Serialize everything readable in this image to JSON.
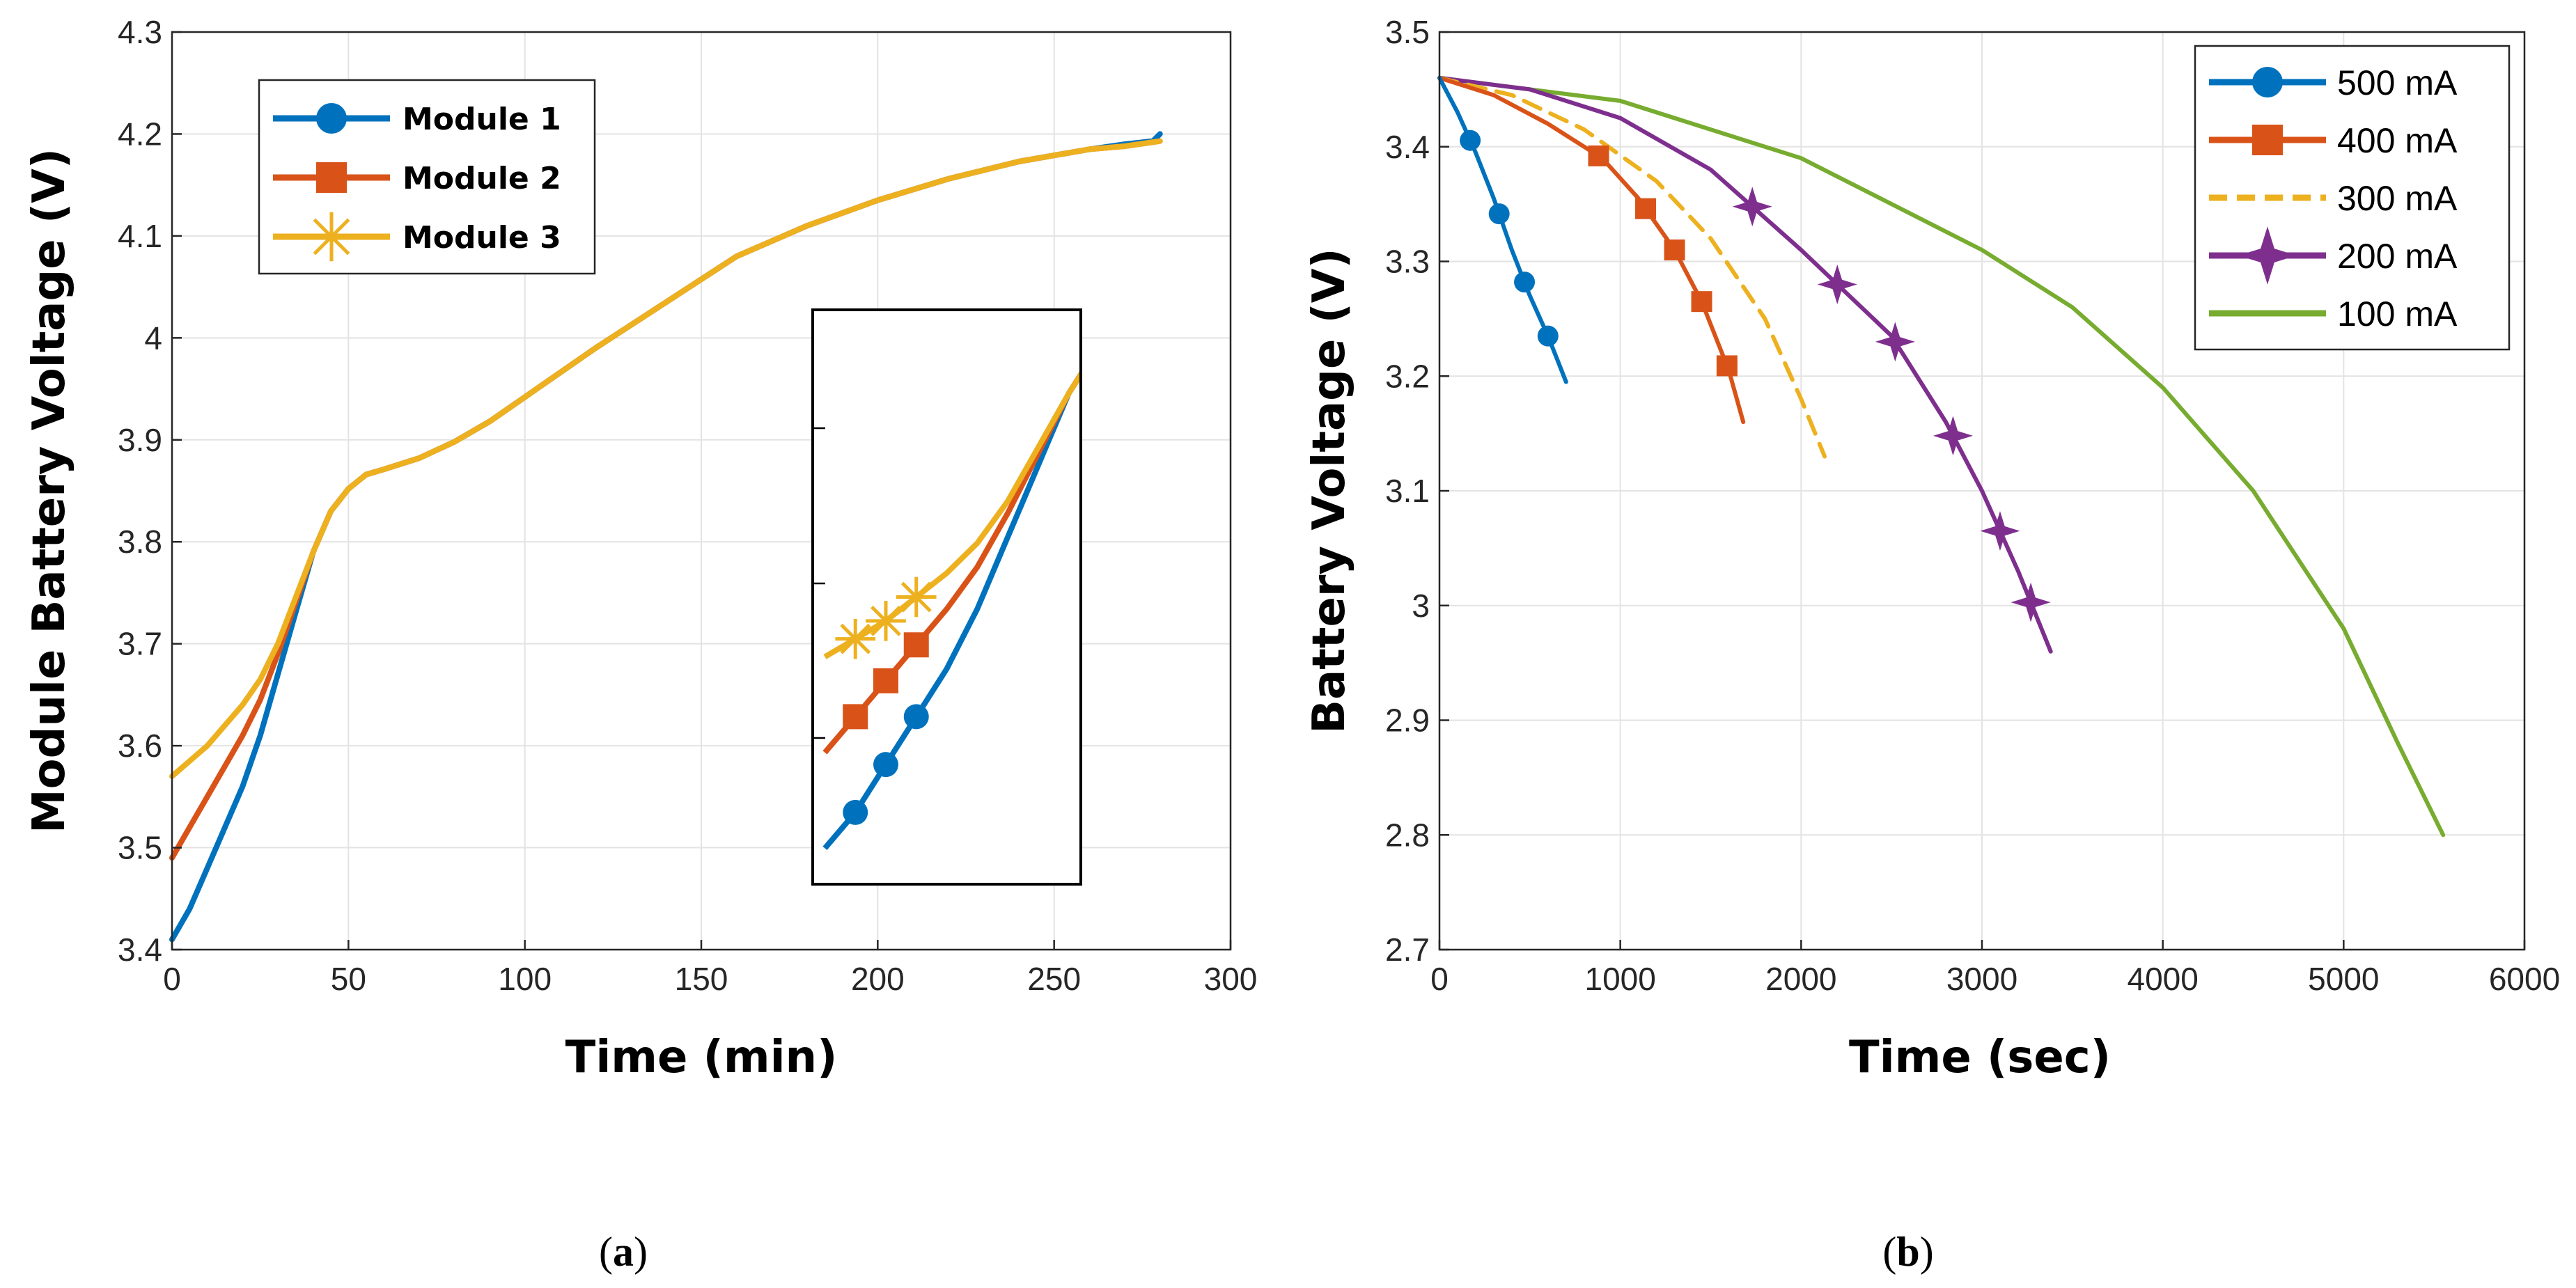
{
  "chart_data": [
    {
      "type": "line",
      "title": "",
      "xlabel": "Time (min)",
      "ylabel": "Module Battery Voltage (V)",
      "xlim": [
        0,
        300
      ],
      "ylim": [
        3.4,
        4.3
      ],
      "xticks": [
        "0",
        "50",
        "100",
        "150",
        "200",
        "250",
        "300"
      ],
      "yticks": [
        "3.4",
        "3.5",
        "3.6",
        "3.7",
        "3.8",
        "3.9",
        "4",
        "4.1",
        "4.2",
        "4.3"
      ],
      "grid": true,
      "legend_position": "top-left",
      "series": [
        {
          "name": "Module 1",
          "color": "#0072BD",
          "marker": "circle",
          "x": [
            0,
            5,
            10,
            15,
            20,
            25,
            30,
            35,
            40,
            45,
            50,
            55,
            60,
            70,
            80,
            90,
            100,
            120,
            140,
            160,
            180,
            200,
            220,
            240,
            260,
            270,
            278,
            280
          ],
          "y": [
            3.41,
            3.44,
            3.48,
            3.52,
            3.56,
            3.61,
            3.67,
            3.73,
            3.79,
            3.83,
            3.852,
            3.866,
            3.871,
            3.882,
            3.898,
            3.918,
            3.942,
            3.99,
            4.035,
            4.08,
            4.11,
            4.135,
            4.156,
            4.173,
            4.185,
            4.19,
            4.193,
            4.2
          ]
        },
        {
          "name": "Module 2",
          "color": "#D95319",
          "marker": "square",
          "x": [
            0,
            5,
            10,
            15,
            20,
            25,
            30,
            35,
            40,
            45,
            50,
            55,
            60,
            70,
            80,
            90,
            100,
            120,
            140,
            160,
            180,
            200,
            220,
            240,
            260,
            270,
            280
          ],
          "y": [
            3.49,
            3.52,
            3.55,
            3.58,
            3.61,
            3.645,
            3.69,
            3.74,
            3.79,
            3.83,
            3.852,
            3.866,
            3.871,
            3.882,
            3.898,
            3.918,
            3.942,
            3.99,
            4.035,
            4.08,
            4.11,
            4.135,
            4.156,
            4.173,
            4.185,
            4.188,
            4.193
          ]
        },
        {
          "name": "Module 3",
          "color": "#EDB120",
          "marker": "star",
          "x": [
            0,
            5,
            10,
            15,
            20,
            25,
            30,
            35,
            40,
            45,
            50,
            55,
            60,
            70,
            80,
            90,
            100,
            120,
            140,
            160,
            180,
            200,
            220,
            240,
            260,
            270,
            280
          ],
          "y": [
            3.57,
            3.585,
            3.6,
            3.62,
            3.64,
            3.665,
            3.7,
            3.745,
            3.79,
            3.83,
            3.852,
            3.866,
            3.871,
            3.882,
            3.898,
            3.918,
            3.942,
            3.99,
            4.035,
            4.08,
            4.11,
            4.135,
            4.156,
            4.173,
            4.185,
            4.188,
            4.193
          ]
        }
      ],
      "inset": {
        "description": "zoomed view of 0-40 min region",
        "xlim": [
          0,
          40
        ],
        "ylim": [
          3.4,
          3.85
        ]
      }
    },
    {
      "type": "line",
      "title": "",
      "xlabel": "Time (sec)",
      "ylabel": "Battery Voltage (V)",
      "xlim": [
        0,
        6000
      ],
      "ylim": [
        2.7,
        3.5
      ],
      "xticks": [
        "0",
        "1000",
        "2000",
        "3000",
        "4000",
        "5000",
        "6000"
      ],
      "yticks": [
        "2.7",
        "2.8",
        "2.9",
        "3",
        "3.1",
        "3.2",
        "3.3",
        "3.4",
        "3.5"
      ],
      "grid": true,
      "legend_position": "top-right",
      "series": [
        {
          "name": "500 mA",
          "color": "#0072BD",
          "marker": "circle",
          "x": [
            0,
            100,
            200,
            300,
            400,
            500,
            600,
            700
          ],
          "y": [
            3.46,
            3.43,
            3.395,
            3.355,
            3.31,
            3.27,
            3.235,
            3.195
          ],
          "marker_x": [
            170,
            330,
            470,
            600
          ]
        },
        {
          "name": "400 mA",
          "color": "#D95319",
          "marker": "square",
          "x": [
            0,
            300,
            600,
            900,
            1100,
            1300,
            1450,
            1600,
            1680
          ],
          "y": [
            3.46,
            3.445,
            3.42,
            3.39,
            3.355,
            3.31,
            3.265,
            3.205,
            3.16
          ],
          "marker_x": [
            880,
            1140,
            1300,
            1450,
            1590
          ]
        },
        {
          "name": "300 mA",
          "color": "#EDB120",
          "marker": "dashed",
          "x": [
            0,
            400,
            800,
            1200,
            1500,
            1800,
            2000,
            2130
          ],
          "y": [
            3.46,
            3.445,
            3.415,
            3.37,
            3.32,
            3.25,
            3.18,
            3.13
          ]
        },
        {
          "name": "200 mA",
          "color": "#7E2F8E",
          "marker": "star",
          "x": [
            0,
            500,
            1000,
            1500,
            2000,
            2500,
            2800,
            3000,
            3200,
            3380
          ],
          "y": [
            3.46,
            3.45,
            3.425,
            3.38,
            3.31,
            3.235,
            3.16,
            3.1,
            3.03,
            2.96
          ],
          "marker_x": [
            1730,
            2200,
            2520,
            2840,
            3100,
            3270
          ]
        },
        {
          "name": "100 mA",
          "color": "#77AC30",
          "marker": "none",
          "x": [
            0,
            1000,
            2000,
            3000,
            3500,
            4000,
            4500,
            5000,
            5300,
            5550
          ],
          "y": [
            3.46,
            3.44,
            3.39,
            3.31,
            3.26,
            3.19,
            3.1,
            2.98,
            2.88,
            2.8
          ]
        }
      ]
    }
  ],
  "captions": [
    "(a)",
    "(b)"
  ]
}
